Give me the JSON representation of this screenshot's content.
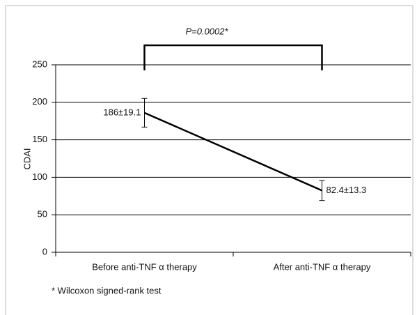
{
  "chart_data": {
    "type": "line",
    "y_label": "CDAI",
    "annotation": "P=0.0002*",
    "footnote": "* Wilcoxon signed-rank test",
    "categories": [
      "Before anti-TNF α therapy",
      "After anti-TNF α therapy"
    ],
    "values": [
      186,
      82.4
    ],
    "errors": [
      19.1,
      13.3
    ],
    "value_labels": [
      "186±19.1",
      "82.4±13.3"
    ],
    "color": "#000000",
    "ylim": [
      0,
      250
    ],
    "yticks": [
      0,
      50,
      100,
      150,
      200,
      250
    ],
    "grid": true
  }
}
